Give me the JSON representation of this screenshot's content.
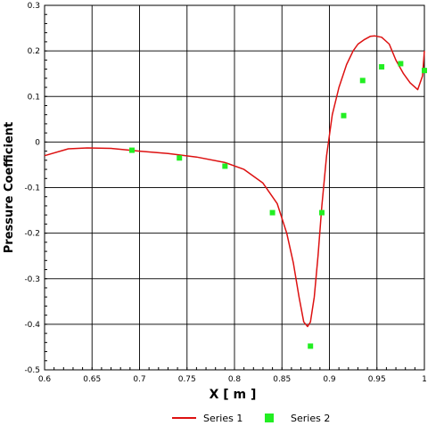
{
  "chart_data": {
    "type": "line",
    "xlabel": "X [ m ]",
    "ylabel": "Pressure Coefficient",
    "xlim": [
      0.6,
      1.0
    ],
    "ylim": [
      -0.5,
      0.3
    ],
    "x_ticks": [
      0.6,
      0.65,
      0.7,
      0.75,
      0.8,
      0.85,
      0.9,
      0.95,
      1.0
    ],
    "x_tick_labels": [
      "0.6",
      "0.65",
      "0.7",
      "0.75",
      "0.8",
      "0.85",
      "0.9",
      "0.95",
      "1"
    ],
    "y_ticks": [
      -0.5,
      -0.4,
      -0.3,
      -0.2,
      -0.1,
      0,
      0.1,
      0.2,
      0.3
    ],
    "y_tick_labels": [
      "-0.5",
      "-0.4",
      "-0.3",
      "-0.2",
      "-0.1",
      "0",
      "0.1",
      "0.2",
      "0.3"
    ],
    "grid": true,
    "legend_position": "bottom",
    "series": [
      {
        "name": "Series 1",
        "kind": "line",
        "color": "#dd1111",
        "x": [
          0.6,
          0.625,
          0.645,
          0.67,
          0.7,
          0.73,
          0.76,
          0.79,
          0.81,
          0.83,
          0.845,
          0.855,
          0.862,
          0.868,
          0.873,
          0.877,
          0.88,
          0.884,
          0.888,
          0.892,
          0.897,
          0.903,
          0.91,
          0.918,
          0.925,
          0.93,
          0.937,
          0.943,
          0.948,
          0.955,
          0.963,
          0.97,
          0.978,
          0.985,
          0.993,
          0.998,
          1.0
        ],
        "y": [
          -0.03,
          -0.015,
          -0.013,
          -0.014,
          -0.02,
          -0.025,
          -0.033,
          -0.045,
          -0.06,
          -0.09,
          -0.135,
          -0.2,
          -0.265,
          -0.34,
          -0.395,
          -0.405,
          -0.395,
          -0.34,
          -0.25,
          -0.14,
          -0.03,
          0.06,
          0.12,
          0.17,
          0.2,
          0.215,
          0.225,
          0.232,
          0.233,
          0.23,
          0.215,
          0.18,
          0.15,
          0.13,
          0.115,
          0.145,
          0.2
        ]
      },
      {
        "name": "Series 2",
        "kind": "scatter",
        "color": "#22ee22",
        "x": [
          0.692,
          0.742,
          0.79,
          0.84,
          0.88,
          0.892,
          0.915,
          0.935,
          0.955,
          0.975,
          1.0
        ],
        "y": [
          -0.018,
          -0.035,
          -0.053,
          -0.155,
          -0.448,
          -0.155,
          0.058,
          0.135,
          0.165,
          0.172,
          0.157
        ]
      }
    ]
  }
}
